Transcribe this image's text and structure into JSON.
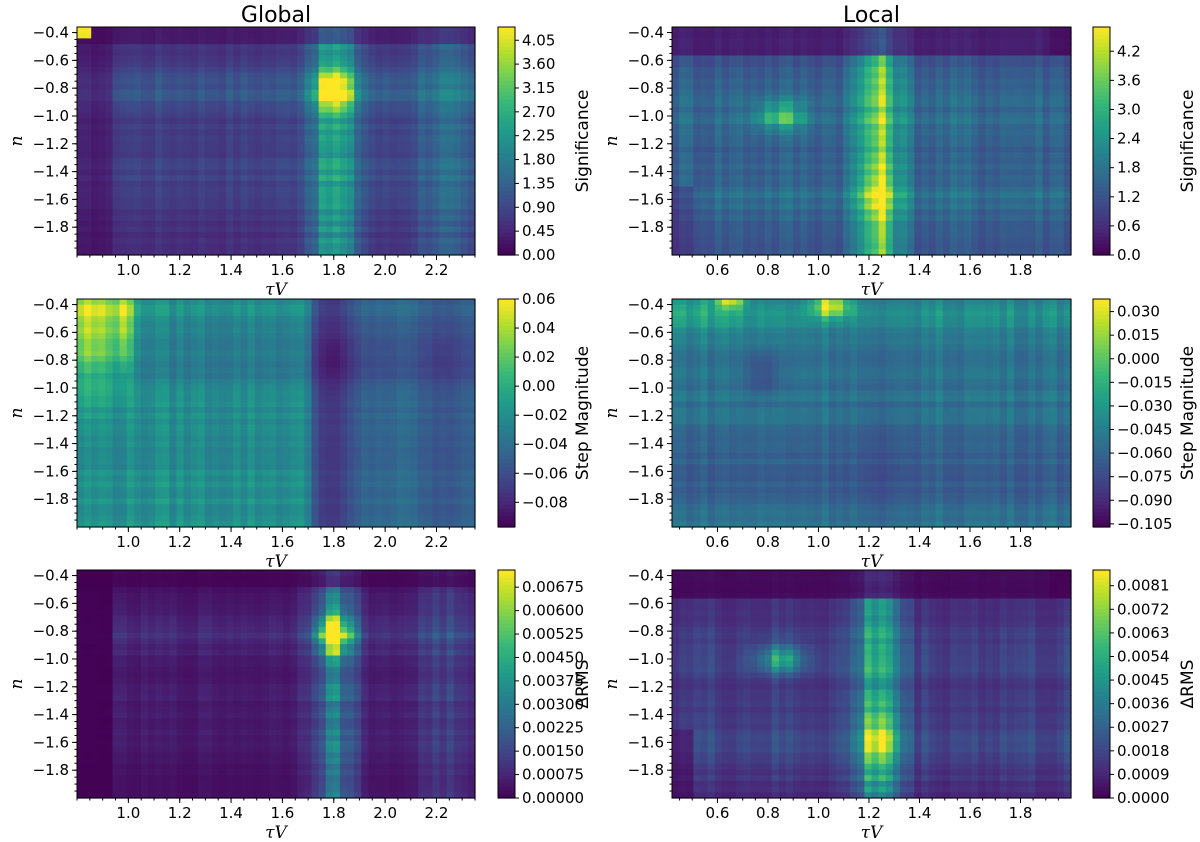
{
  "chart_data": [
    {
      "type": "heatmap",
      "title": "Global",
      "xlabel": "τV",
      "ylabel": "n",
      "colorbar_label": "Significance",
      "xlim": [
        0.8,
        2.35
      ],
      "ylim": [
        -2.0,
        -0.36
      ],
      "xticks": [
        "1.0",
        "1.2",
        "1.4",
        "1.6",
        "1.8",
        "2.0",
        "2.2"
      ],
      "yticks": [
        "-0.4",
        "-0.6",
        "-0.8",
        "-1.0",
        "-1.2",
        "-1.4",
        "-1.6",
        "-1.8"
      ],
      "cbar_range": [
        0,
        4.3
      ],
      "cbar_ticks": [
        "0.00",
        "0.45",
        "0.90",
        "1.35",
        "1.80",
        "2.25",
        "2.70",
        "3.15",
        "3.60",
        "4.05"
      ],
      "colormap": "viridis",
      "peak": {
        "x": 1.8,
        "y": -0.8,
        "value": 4.2
      }
    },
    {
      "type": "heatmap",
      "title": "Local",
      "xlabel": "τV",
      "ylabel": "n",
      "colorbar_label": "Significance",
      "xlim": [
        0.42,
        2.0
      ],
      "ylim": [
        -2.0,
        -0.36
      ],
      "xticks": [
        "0.6",
        "0.8",
        "1.0",
        "1.2",
        "1.4",
        "1.6",
        "1.8"
      ],
      "yticks": [
        "-0.4",
        "-0.6",
        "-0.8",
        "-1.0",
        "-1.2",
        "-1.4",
        "-1.6",
        "-1.8"
      ],
      "cbar_range": [
        0,
        4.7
      ],
      "cbar_ticks": [
        "0.0",
        "0.6",
        "1.2",
        "1.8",
        "2.4",
        "3.0",
        "3.6",
        "4.2"
      ],
      "colormap": "viridis",
      "peak": {
        "x": 1.25,
        "y": -1.6,
        "value": 4.4
      }
    },
    {
      "type": "heatmap",
      "title": "",
      "xlabel": "τV",
      "ylabel": "n",
      "colorbar_label": "Step Magnitude",
      "xlim": [
        0.8,
        2.35
      ],
      "ylim": [
        -2.0,
        -0.36
      ],
      "xticks": [
        "1.0",
        "1.2",
        "1.4",
        "1.6",
        "1.8",
        "2.0",
        "2.2"
      ],
      "yticks": [
        "-0.4",
        "-0.6",
        "-0.8",
        "-1.0",
        "-1.2",
        "-1.4",
        "-1.6",
        "-1.8"
      ],
      "cbar_range": [
        -0.097,
        0.06
      ],
      "cbar_ticks": [
        "-0.08",
        "-0.06",
        "-0.04",
        "-0.02",
        "0.00",
        "0.02",
        "0.04",
        "0.06"
      ],
      "colormap": "viridis",
      "peak": {
        "x": 0.85,
        "y": -0.45,
        "value": 0.06
      }
    },
    {
      "type": "heatmap",
      "title": "",
      "xlabel": "τV",
      "ylabel": "n",
      "colorbar_label": "Step Magnitude",
      "xlim": [
        0.42,
        2.0
      ],
      "ylim": [
        -2.0,
        -0.36
      ],
      "xticks": [
        "0.6",
        "0.8",
        "1.0",
        "1.2",
        "1.4",
        "1.6",
        "1.8"
      ],
      "yticks": [
        "-0.4",
        "-0.6",
        "-0.8",
        "-1.0",
        "-1.2",
        "-1.4",
        "-1.6",
        "-1.8"
      ],
      "cbar_range": [
        -0.107,
        0.038
      ],
      "cbar_ticks": [
        "0.030",
        "0.015",
        "0.000",
        "-0.015",
        "-0.030",
        "-0.045",
        "-0.060",
        "-0.075",
        "-0.090",
        "-0.105"
      ],
      "colormap": "viridis",
      "peak": {
        "x": 1.05,
        "y": -0.4,
        "value": 0.035
      }
    },
    {
      "type": "heatmap",
      "title": "",
      "xlabel": "τV",
      "ylabel": "n",
      "colorbar_label": "ΔRMS",
      "xlim": [
        0.8,
        2.35
      ],
      "ylim": [
        -2.0,
        -0.36
      ],
      "xticks": [
        "1.0",
        "1.2",
        "1.4",
        "1.6",
        "1.8",
        "2.0",
        "2.2"
      ],
      "yticks": [
        "-0.4",
        "-0.6",
        "-0.8",
        "-1.0",
        "-1.2",
        "-1.4",
        "-1.6",
        "-1.8"
      ],
      "cbar_range": [
        0,
        0.0073
      ],
      "cbar_ticks": [
        "0.00000",
        "0.00075",
        "0.00150",
        "0.00225",
        "0.00300",
        "0.00375",
        "0.00450",
        "0.00525",
        "0.00600",
        "0.00675"
      ],
      "colormap": "viridis",
      "peak": {
        "x": 1.8,
        "y": -0.8,
        "value": 0.007
      }
    },
    {
      "type": "heatmap",
      "title": "",
      "xlabel": "τV",
      "ylabel": "n",
      "colorbar_label": "ΔRMS",
      "xlim": [
        0.42,
        2.0
      ],
      "ylim": [
        -2.0,
        -0.36
      ],
      "xticks": [
        "0.6",
        "0.8",
        "1.0",
        "1.2",
        "1.4",
        "1.6",
        "1.8"
      ],
      "yticks": [
        "-0.4",
        "-0.6",
        "-0.8",
        "-1.0",
        "-1.2",
        "-1.4",
        "-1.6",
        "-1.8"
      ],
      "cbar_range": [
        0,
        0.0087
      ],
      "cbar_ticks": [
        "0.0000",
        "0.0009",
        "0.0018",
        "0.0027",
        "0.0036",
        "0.0045",
        "0.0054",
        "0.0063",
        "0.0072",
        "0.0081"
      ],
      "colormap": "viridis",
      "peak": {
        "x": 1.25,
        "y": -1.6,
        "value": 0.0083
      }
    }
  ]
}
